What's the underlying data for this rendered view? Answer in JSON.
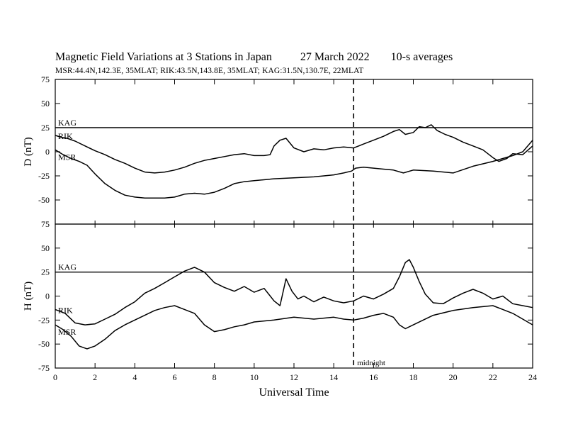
{
  "header": {
    "title": "Magnetic Field Variations at 3 Stations in Japan",
    "date": "27 March   2022",
    "averaging": "10-s averages",
    "stations_line": "MSR:44.4N,142.3E, 35MLAT;   RIK:43.5N,143.8E, 35MLAT;   KAG:31.5N,130.7E, 22MLAT"
  },
  "chart_data": {
    "type": "line",
    "xlabel": "Universal Time",
    "xlim": [
      0,
      24
    ],
    "xticks": [
      0,
      2,
      4,
      6,
      8,
      10,
      12,
      14,
      16,
      18,
      20,
      22,
      24
    ],
    "grid": false,
    "midnight": {
      "x": 15,
      "label": "midnight"
    },
    "panels": [
      {
        "id": "D",
        "ylabel": "D (nT)",
        "ylim": [
          -75,
          75
        ],
        "yticks": [
          75,
          50,
          25,
          0,
          -25,
          -50,
          -75
        ],
        "series": [
          {
            "name": "KAG",
            "x": [
              0,
              24
            ],
            "y": [
              25,
              25
            ]
          },
          {
            "name": "RIK",
            "x": [
              0,
              0.3,
              0.6,
              1,
              1.5,
              2,
              2.5,
              3,
              3.5,
              4,
              4.5,
              5,
              5.5,
              6,
              6.5,
              7,
              7.5,
              8,
              8.5,
              9,
              9.5,
              10,
              10.5,
              10.8,
              11,
              11.3,
              11.6,
              12,
              12.5,
              13,
              13.5,
              14,
              14.5,
              15,
              15.5,
              16,
              16.5,
              17,
              17.3,
              17.6,
              18,
              18.3,
              18.6,
              18.9,
              19.2,
              19.6,
              20,
              20.5,
              21,
              21.5,
              22,
              22.3,
              22.7,
              23,
              23.5,
              24
            ],
            "y": [
              17,
              15,
              14,
              11,
              6,
              1,
              -3,
              -8,
              -12,
              -17,
              -21,
              -22,
              -21,
              -19,
              -16,
              -12,
              -9,
              -7,
              -5,
              -3,
              -2,
              -4,
              -4,
              -3,
              6,
              12,
              14,
              4,
              0,
              3,
              2,
              4,
              5,
              4,
              8,
              12,
              16,
              21,
              23,
              18,
              20,
              26,
              25,
              28,
              22,
              18,
              15,
              10,
              6,
              2,
              -6,
              -10,
              -7,
              -2,
              -3,
              6
            ]
          },
          {
            "name": "MSR",
            "x": [
              0,
              0.4,
              0.8,
              1.2,
              1.6,
              2,
              2.5,
              3,
              3.5,
              4,
              4.5,
              5,
              5.5,
              6,
              6.5,
              7,
              7.5,
              8,
              8.5,
              9,
              9.5,
              10,
              11,
              12,
              13,
              14,
              14.5,
              14.9,
              15.1,
              15.5,
              16,
              16.5,
              17,
              17.5,
              18,
              19,
              20,
              21,
              22,
              22.5,
              23,
              23.5,
              24
            ],
            "y": [
              2,
              -3,
              -7,
              -10,
              -14,
              -23,
              -33,
              -40,
              -45,
              -47,
              -48,
              -48,
              -48,
              -47,
              -44,
              -43,
              -44,
              -42,
              -38,
              -33,
              -31,
              -30,
              -28,
              -27,
              -26,
              -24,
              -22,
              -20,
              -17,
              -16,
              -17,
              -18,
              -19,
              -22,
              -19,
              -20,
              -22,
              -15,
              -10,
              -7,
              -4,
              0,
              12
            ]
          }
        ]
      },
      {
        "id": "H",
        "ylabel": "H (nT)",
        "ylim": [
          -75,
          75
        ],
        "yticks": [
          75,
          50,
          25,
          0,
          -25,
          -50,
          -75
        ],
        "series": [
          {
            "name": "KAG",
            "x": [
              0,
              24
            ],
            "y": [
              25,
              25
            ]
          },
          {
            "name": "RIK",
            "x": [
              0,
              0.5,
              1,
              1.5,
              2,
              2.5,
              3,
              3.5,
              4,
              4.5,
              5,
              5.5,
              6,
              6.5,
              7,
              7.5,
              8,
              8.5,
              9,
              9.5,
              10,
              10.5,
              11,
              11.3,
              11.6,
              11.9,
              12.2,
              12.5,
              13,
              13.5,
              14,
              14.5,
              15,
              15.5,
              16,
              16.5,
              17,
              17.3,
              17.6,
              17.8,
              18,
              18.3,
              18.6,
              19,
              19.5,
              20,
              20.5,
              21,
              21.5,
              22,
              22.5,
              23,
              23.5,
              24
            ],
            "y": [
              -14,
              -18,
              -28,
              -30,
              -29,
              -24,
              -19,
              -12,
              -6,
              3,
              8,
              14,
              20,
              26,
              30,
              25,
              14,
              9,
              5,
              10,
              4,
              8,
              -5,
              -10,
              18,
              5,
              -3,
              0,
              -6,
              -1,
              -5,
              -7,
              -5,
              0,
              -3,
              2,
              8,
              20,
              35,
              38,
              30,
              15,
              2,
              -7,
              -8,
              -2,
              3,
              7,
              3,
              -3,
              0,
              -8,
              -10,
              -12
            ]
          },
          {
            "name": "MSR",
            "x": [
              0,
              0.4,
              0.8,
              1.2,
              1.6,
              2,
              2.5,
              3,
              3.5,
              4,
              4.5,
              5,
              5.5,
              6,
              6.5,
              7,
              7.5,
              8,
              8.5,
              9,
              9.5,
              10,
              11,
              12,
              13,
              14,
              14.5,
              15,
              15.5,
              16,
              16.5,
              17,
              17.3,
              17.6,
              18,
              18.5,
              19,
              20,
              21,
              22,
              22.5,
              23,
              23.5,
              24
            ],
            "y": [
              -30,
              -35,
              -42,
              -52,
              -55,
              -52,
              -45,
              -36,
              -30,
              -25,
              -20,
              -15,
              -12,
              -10,
              -14,
              -18,
              -30,
              -37,
              -35,
              -32,
              -30,
              -27,
              -25,
              -22,
              -24,
              -22,
              -24,
              -25,
              -23,
              -20,
              -18,
              -22,
              -30,
              -34,
              -30,
              -25,
              -20,
              -15,
              -12,
              -10,
              -14,
              -18,
              -24,
              -30
            ]
          }
        ]
      }
    ]
  }
}
